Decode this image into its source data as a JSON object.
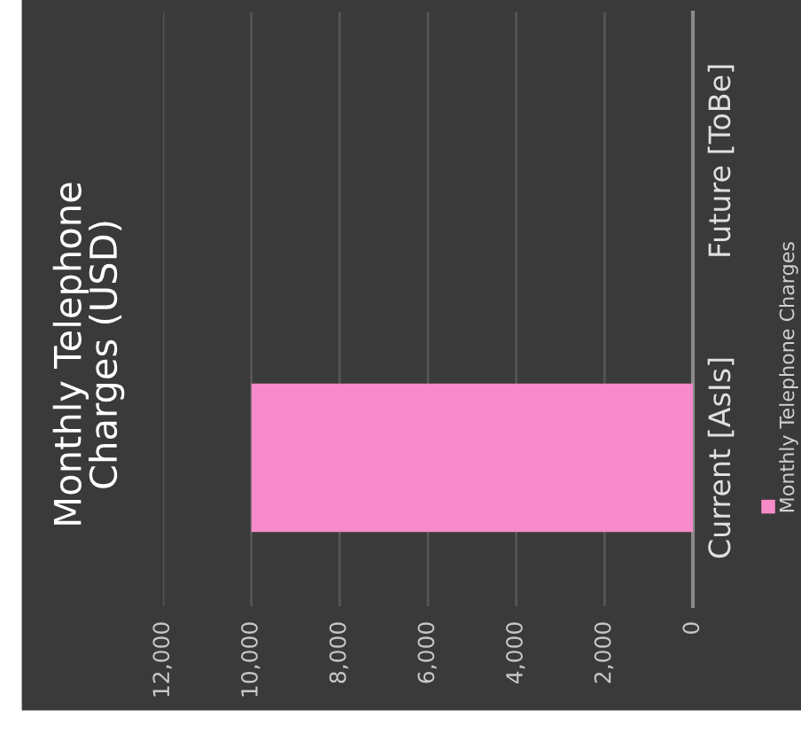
{
  "chart_data": {
    "type": "bar",
    "orientation": "horizontal",
    "title": "Monthly Telephone\nCharges (USD)",
    "categories": [
      "Future [ToBe]",
      "Current [AsIs]"
    ],
    "series": [
      {
        "name": "Monthly Telephone Charges",
        "color": "#f78ac8",
        "values": [
          null,
          10000
        ]
      }
    ],
    "xlim": [
      12000,
      0
    ],
    "xticks": [
      {
        "value": 12000,
        "label": "12,000"
      },
      {
        "value": 10000,
        "label": "10,000"
      },
      {
        "value": 8000,
        "label": "8,000"
      },
      {
        "value": 6000,
        "label": "6,000"
      },
      {
        "value": 4000,
        "label": "4,000"
      },
      {
        "value": 2000,
        "label": "2,000"
      },
      0
    ],
    "grid": "x",
    "legend": "right"
  }
}
